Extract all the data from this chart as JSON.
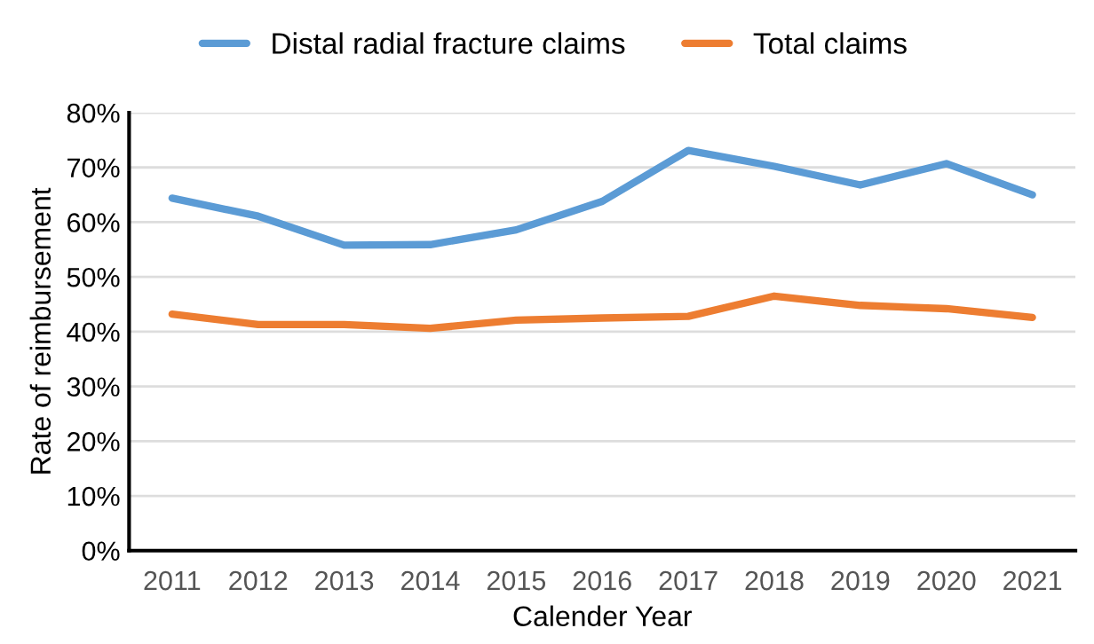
{
  "chart_data": {
    "type": "line",
    "xlabel": "Calender Year",
    "ylabel": "Rate of reimbursement",
    "categories": [
      "2011",
      "2012",
      "2013",
      "2014",
      "2015",
      "2016",
      "2017",
      "2018",
      "2019",
      "2020",
      "2021"
    ],
    "series": [
      {
        "name": "Distal radial fracture claims",
        "color": "#5b9bd5",
        "values": [
          64.4,
          61.1,
          55.8,
          55.9,
          58.6,
          63.8,
          73.1,
          70.2,
          66.8,
          70.7,
          65.0
        ]
      },
      {
        "name": "Total claims",
        "color": "#ed7d31",
        "values": [
          43.2,
          41.3,
          41.3,
          40.6,
          42.1,
          42.5,
          42.8,
          46.5,
          44.8,
          44.2,
          42.6
        ]
      }
    ],
    "ylim": [
      0,
      80
    ],
    "yticks": [
      {
        "value": 0,
        "label": "0%"
      },
      {
        "value": 10,
        "label": "10%"
      },
      {
        "value": 20,
        "label": "20%"
      },
      {
        "value": 30,
        "label": "30%"
      },
      {
        "value": 40,
        "label": "40%"
      },
      {
        "value": 50,
        "label": "50%"
      },
      {
        "value": 60,
        "label": "60%"
      },
      {
        "value": 70,
        "label": "70%"
      },
      {
        "value": 80,
        "label": "80%"
      }
    ],
    "grid": "y",
    "legend": "top",
    "marker": "none",
    "line_style": "solid"
  }
}
